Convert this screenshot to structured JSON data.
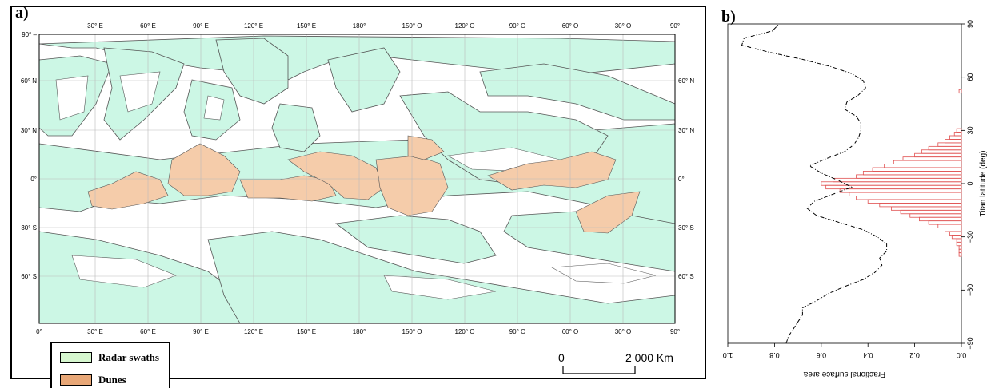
{
  "panel_a": {
    "label": "a)",
    "lon_ticks_top": [
      "30° E",
      "60° E",
      "90° E",
      "120° E",
      "150° E",
      "180°",
      "150° O",
      "120° O",
      "90° O",
      "60° O",
      "30° O",
      "90°"
    ],
    "lon_ticks_bottom": [
      "0°",
      "30° E",
      "60° E",
      "90° E",
      "120° E",
      "150° E",
      "180°",
      "150° O",
      "120° O",
      "90° O",
      "60° O",
      "30° O",
      "90°"
    ],
    "lat_ticks_left": [
      "90° –",
      "60° N",
      "30° N",
      "0°",
      "30° S",
      "60° S"
    ],
    "lat_ticks_right": [
      "60° N",
      "30° N",
      "0°",
      "30° S",
      "60° S"
    ],
    "legend": [
      {
        "label": "Radar swaths",
        "color": "#d6f7cf"
      },
      {
        "label": "Dunes",
        "color": "#e8a777"
      }
    ],
    "scale_bar": {
      "left_label": "0",
      "right_label": "2 000 Km"
    },
    "colors": {
      "swath": "#ccf7e5",
      "dunes": "#f5ccaa",
      "outline": "#555555",
      "grid": "#bbbbbb"
    }
  },
  "panel_b": {
    "label": "b)",
    "y_axis_label": "Titan latitude (deg)",
    "x_axis_label": "Fractional surface area"
  },
  "chart_data": {
    "type": "bar",
    "title": "",
    "ylabel": "Titan latitude (deg)",
    "xlabel": "Fractional surface area",
    "xlim": [
      0,
      1.0
    ],
    "ylim": [
      -90,
      90
    ],
    "x_ticks": [
      "0.0",
      "0.2",
      "0.4",
      "0.6",
      "0.8",
      "1.0"
    ],
    "y_ticks": [
      "−90",
      "−60",
      "−30",
      "0",
      "30",
      "60",
      "90"
    ],
    "bar_color": "#e05050",
    "bar_width_deg": 2,
    "series": [
      {
        "type": "bar",
        "latitude": [
          52,
          30,
          28,
          26,
          24,
          22,
          20,
          18,
          16,
          14,
          12,
          10,
          8,
          6,
          4,
          2,
          0,
          -2,
          -4,
          -6,
          -8,
          -10,
          -12,
          -14,
          -16,
          -18,
          -20,
          -22,
          -24,
          -26,
          -28,
          -30,
          -32,
          -34,
          -36,
          -38,
          -40
        ],
        "value": [
          0.01,
          0.02,
          0.03,
          0.05,
          0.07,
          0.1,
          0.14,
          0.17,
          0.2,
          0.25,
          0.29,
          0.33,
          0.38,
          0.42,
          0.45,
          0.55,
          0.6,
          0.58,
          0.52,
          0.48,
          0.45,
          0.4,
          0.35,
          0.3,
          0.26,
          0.22,
          0.18,
          0.14,
          0.1,
          0.07,
          0.05,
          0.04,
          0.02,
          0.02,
          0.01,
          0.01,
          0.01
        ]
      },
      {
        "type": "line",
        "latitude": [
          -90,
          -86,
          -82,
          -78,
          -74,
          -70,
          -66,
          -62,
          -58,
          -54,
          -50,
          -46,
          -42,
          -38,
          -34,
          -30,
          -26,
          -22,
          -18,
          -14,
          -10,
          -6,
          -2,
          2,
          6,
          10,
          14,
          18,
          22,
          26,
          30,
          34,
          38,
          42,
          46,
          50,
          54,
          58,
          62,
          66,
          70,
          74,
          78,
          82,
          86,
          90
        ],
        "value": [
          0.75,
          0.74,
          0.72,
          0.7,
          0.68,
          0.68,
          0.62,
          0.57,
          0.5,
          0.42,
          0.37,
          0.34,
          0.35,
          0.32,
          0.32,
          0.36,
          0.42,
          0.52,
          0.62,
          0.66,
          0.63,
          0.55,
          0.47,
          0.53,
          0.6,
          0.65,
          0.58,
          0.5,
          0.46,
          0.44,
          0.43,
          0.43,
          0.45,
          0.5,
          0.49,
          0.44,
          0.41,
          0.42,
          0.47,
          0.56,
          0.68,
          0.82,
          0.94,
          0.93,
          0.81,
          0.78
        ]
      }
    ]
  }
}
